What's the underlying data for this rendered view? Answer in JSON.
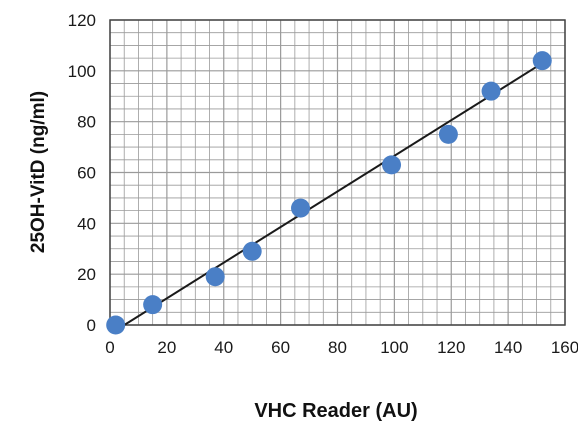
{
  "chart_data": {
    "type": "scatter",
    "xlabel": "VHC Reader (AU)",
    "ylabel": "25OH-VitD  (ng/ml)",
    "xlim": [
      0,
      160
    ],
    "ylim": [
      0,
      120
    ],
    "x_ticks": [
      0,
      20,
      40,
      60,
      80,
      100,
      120,
      140,
      160
    ],
    "y_ticks": [
      0,
      20,
      40,
      60,
      80,
      100,
      120
    ],
    "x_minor_step": 5,
    "y_minor_step": 5,
    "grid": true,
    "series": [
      {
        "points": [
          {
            "x": 2,
            "y": 0
          },
          {
            "x": 15,
            "y": 8
          },
          {
            "x": 37,
            "y": 19
          },
          {
            "x": 50,
            "y": 29
          },
          {
            "x": 67,
            "y": 46
          },
          {
            "x": 99,
            "y": 63
          },
          {
            "x": 119,
            "y": 75
          },
          {
            "x": 134,
            "y": 92
          },
          {
            "x": 152,
            "y": 104
          }
        ]
      }
    ],
    "fit_line": {
      "x": [
        5,
        152
      ],
      "y": [
        0,
        103
      ]
    },
    "colors": {
      "marker": "#4a7fc6",
      "fit_line": "#1a1a1a",
      "grid": "#9a9a9a",
      "frame": "#444444"
    }
  }
}
